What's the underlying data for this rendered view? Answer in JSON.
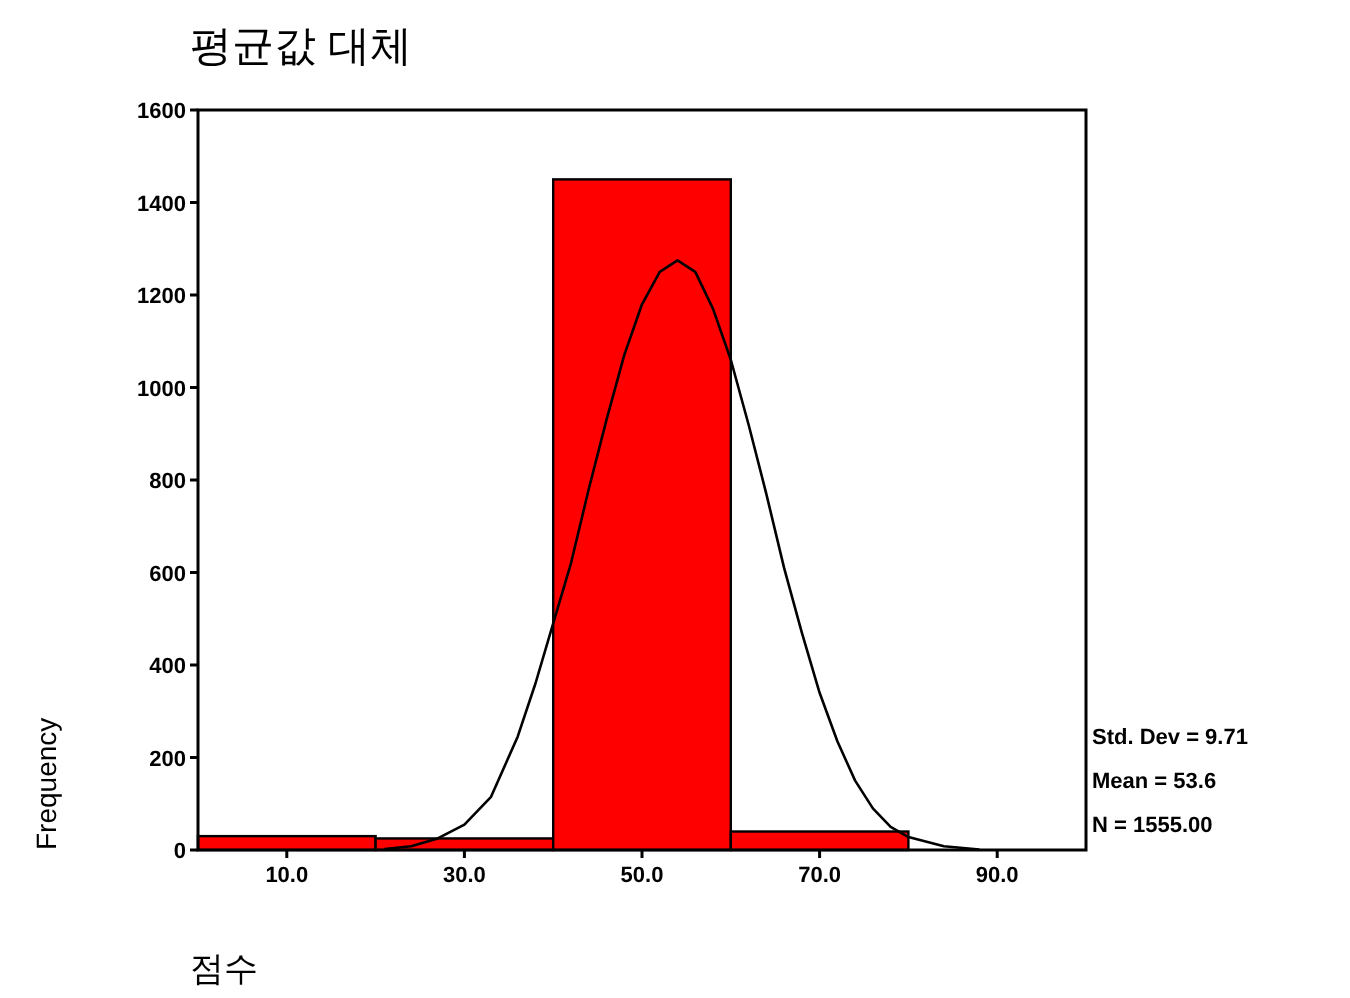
{
  "chart_data": {
    "type": "histogram",
    "title": "평균값 대체",
    "xlabel": "점수",
    "ylabel": "Frequency",
    "bins": [
      0,
      20,
      40,
      60,
      80
    ],
    "values": [
      30,
      25,
      1450,
      40
    ],
    "color": "#ff0000",
    "xlim": [
      0,
      100
    ],
    "ylim": [
      0,
      1600
    ],
    "xticks": [
      {
        "value": 10,
        "label": "10.0"
      },
      {
        "value": 30,
        "label": "30.0"
      },
      {
        "value": 50,
        "label": "50.0"
      },
      {
        "value": 70,
        "label": "70.0"
      },
      {
        "value": 90,
        "label": "90.0"
      }
    ],
    "yticks": [
      0,
      200,
      400,
      600,
      800,
      1000,
      1200,
      1400,
      1600
    ],
    "series": [
      {
        "type": "line",
        "color": "#000000",
        "x": [
          21,
          24,
          27,
          30,
          33,
          36,
          38,
          40,
          42,
          44,
          46,
          48,
          50,
          52,
          54,
          56,
          58,
          60,
          62,
          64,
          66,
          68,
          70,
          72,
          74,
          76,
          78,
          80,
          84,
          88
        ],
        "values": [
          2,
          8,
          25,
          55,
          115,
          245,
          360,
          490,
          620,
          780,
          930,
          1070,
          1180,
          1250,
          1275,
          1250,
          1170,
          1060,
          920,
          770,
          610,
          470,
          340,
          235,
          150,
          90,
          50,
          28,
          8,
          1
        ]
      }
    ],
    "annotations": [
      "Std. Dev = 9.71",
      "Mean = 53.6",
      "N = 1555.00"
    ],
    "grid": false
  }
}
